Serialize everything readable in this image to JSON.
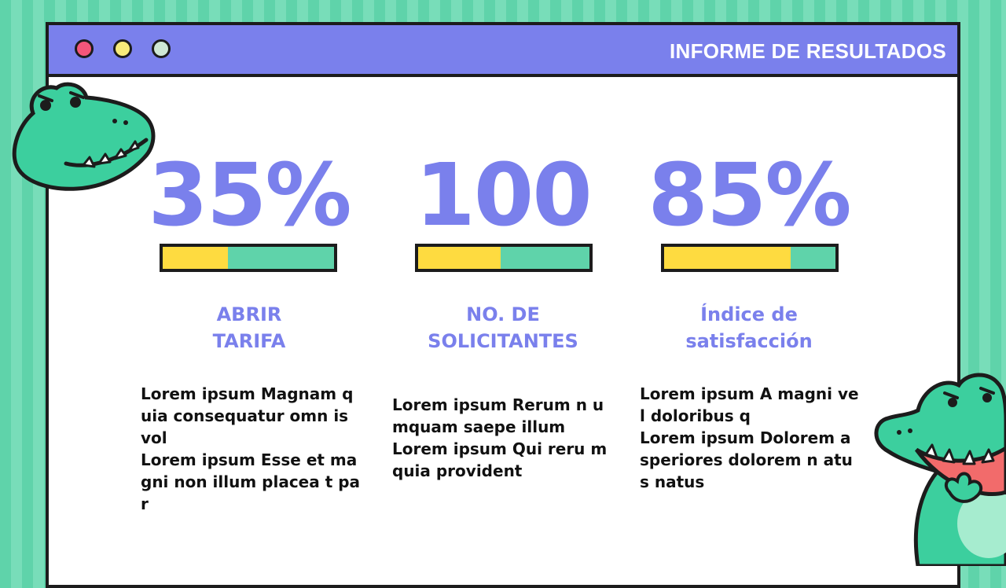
{
  "window": {
    "title": "INFORME DE RESULTADOS"
  },
  "colors": {
    "accent": "#7a80ec",
    "bar_fill": "#fedb40",
    "bar_track": "#5fd3aa",
    "background_stripe": "#5fd3aa"
  },
  "stats": [
    {
      "value": "35%",
      "progress": 0.38,
      "label_line1": "ABRIR",
      "label_line2": "TARIFA",
      "text_line1": "Lorem ipsum Magnam quia consequatur omn is vol",
      "text_line2": "Lorem ipsum Esse et magni non illum placea t par"
    },
    {
      "value": "100",
      "progress": 0.48,
      "label_line1": "NO. DE",
      "label_line2": "SOLICITANTES",
      "text_line1": "Lorem ipsum Rerum n umquam saepe illum",
      "text_line2": "Lorem ipsum Qui reru m quia provident"
    },
    {
      "value": "85%",
      "progress": 0.74,
      "label_line1": "Índice de",
      "label_line2": "satisfacción",
      "text_line1": "Lorem ipsum A magni vel doloribus q",
      "text_line2": "Lorem ipsum Dolorem asperiores dolorem n atus natus"
    }
  ],
  "decorations": {
    "left_mascot": "crocodile-head-icon",
    "right_mascot": "crocodile-roaring-icon"
  }
}
